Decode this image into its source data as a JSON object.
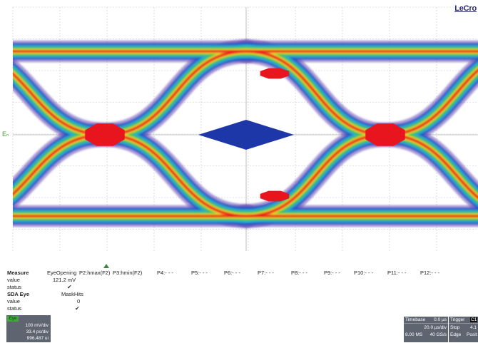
{
  "brand": "LeCro",
  "channel_marker": "Eₙ",
  "measure": {
    "header_label": "Measure",
    "row1_label": "value",
    "row2_label": "status",
    "section2_label": "SDA Eye",
    "row3_label": "value",
    "row4_label": "status",
    "columns": [
      "EyeOpening",
      "P2:hmax(F2)",
      "P3:hmin(F2)",
      "P4:- - -",
      "P5:- - -",
      "P6:- - -",
      "P7:- - -",
      "P8:- - -",
      "P9:- - -",
      "P10:- - -",
      "P11:- - -",
      "P12:- - -"
    ],
    "p1_value": "121.2 mV",
    "p1_status": "✔",
    "sda_column": "MaskHits",
    "sda_value": "0",
    "sda_status": "✔"
  },
  "eye_descriptor": {
    "tag": "Eye",
    "lines": [
      "100 mV/div",
      "33.4 ps/div",
      "996,487 ui"
    ]
  },
  "timebase": {
    "label": "Timebase",
    "offset": "0.0 µs",
    "per_div": "20.0 µs/div",
    "samples": "8.00 MS",
    "rate": "40 GS/s"
  },
  "trigger": {
    "label": "Trigger",
    "source_badge": "C1",
    "mode": "Stop",
    "level": "4.1",
    "type": "Edge",
    "slope": "Posit"
  },
  "colors": {
    "heat_hot": "#e8141e",
    "heat_warm": "#f07a18",
    "heat_mid": "#e8e832",
    "heat_green": "#4cc04a",
    "heat_cyan": "#28b4c8",
    "heat_blue": "#2456c8",
    "heat_edge": "#6a4ab4",
    "mask": "#1e37a8",
    "grid": "#c8c8c8"
  }
}
